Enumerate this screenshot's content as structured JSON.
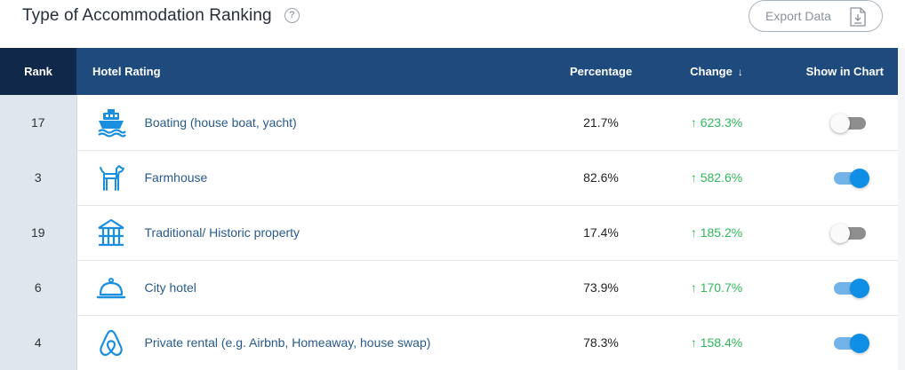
{
  "header": {
    "title": "Type of Accommodation Ranking",
    "help_glyph": "?",
    "export_label": "Export Data"
  },
  "table": {
    "columns": {
      "rank": "Rank",
      "rating": "Hotel Rating",
      "percentage": "Percentage",
      "change": "Change",
      "change_sort_glyph": "↓",
      "show": "Show in Chart"
    },
    "rows": [
      {
        "rank": "17",
        "icon": "boat-icon",
        "label": "Boating (house boat, yacht)",
        "percentage": "21.7%",
        "change": "↑ 623.3%",
        "show": false
      },
      {
        "rank": "3",
        "icon": "dog-icon",
        "label": "Farmhouse",
        "percentage": "82.6%",
        "change": "↑ 582.6%",
        "show": true
      },
      {
        "rank": "19",
        "icon": "historic-building-icon",
        "label": "Traditional/ Historic property",
        "percentage": "17.4%",
        "change": "↑ 185.2%",
        "show": false
      },
      {
        "rank": "6",
        "icon": "room-service-bell-icon",
        "label": "City hotel",
        "percentage": "73.9%",
        "change": "↑ 170.7%",
        "show": true
      },
      {
        "rank": "4",
        "icon": "airbnb-icon",
        "label": "Private rental (e.g. Airbnb, Homeaway, house swap)",
        "percentage": "78.3%",
        "change": "↑ 158.4%",
        "show": true
      }
    ]
  },
  "colors": {
    "header_bg": "#1e4a7e",
    "rank_header_bg": "#10294a",
    "icon_blue": "#1a8fe0",
    "change_green": "#2fb85a",
    "toggle_on": "#0f8ee6"
  }
}
